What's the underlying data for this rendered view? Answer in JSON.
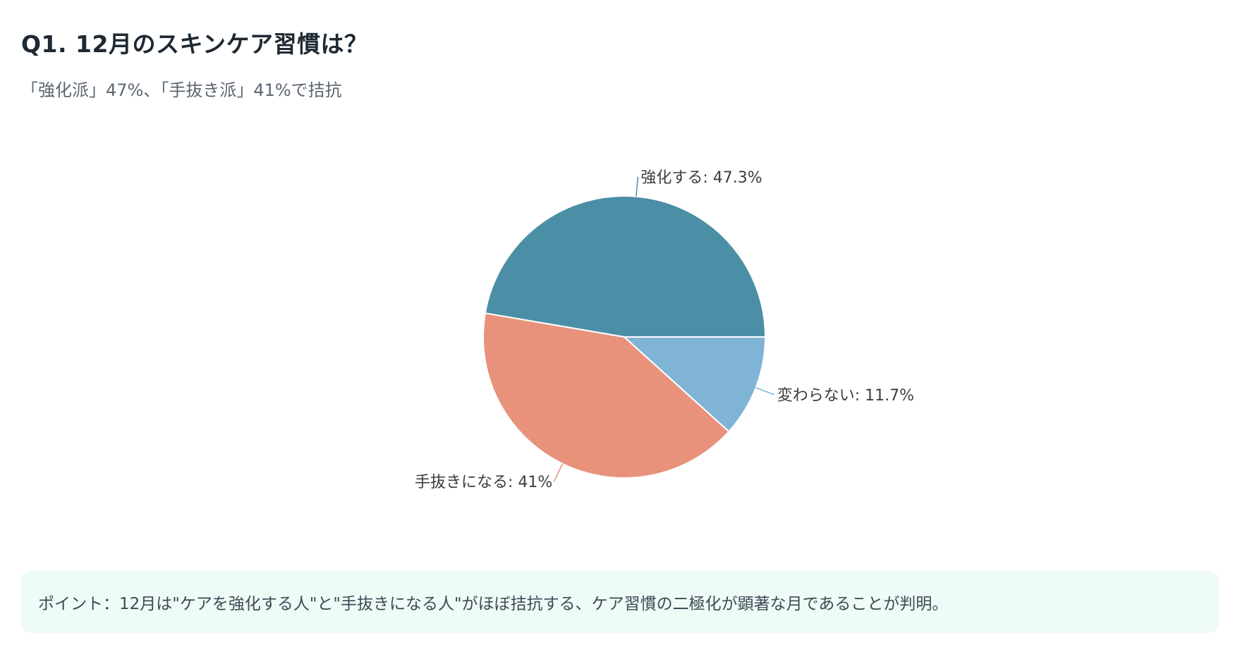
{
  "header": {
    "title": "Q1. 12月のスキンケア習慣は？",
    "subtitle": "「強化派」47%、「手抜き派」41%で拮抗"
  },
  "chart_data": {
    "type": "pie",
    "title": "",
    "start_angle_deg": 0,
    "direction": "counterclockwise",
    "slices": [
      {
        "label": "強化する",
        "value": 47.3,
        "display": "強化する: 47.3%",
        "color": "#4b8fa6"
      },
      {
        "label": "手抜きになる",
        "value": 41,
        "display": "手抜きになる: 41%",
        "color": "#e8917b"
      },
      {
        "label": "変わらない",
        "value": 11.7,
        "display": "変わらない: 11.7%",
        "color": "#7fb4d6"
      }
    ],
    "legend": "none"
  },
  "point": {
    "text": "ポイント：12月は\"ケアを強化する人\"と\"手抜きになる人\"がほぼ拮抗する、ケア習慣の二極化が顕著な月であることが判明。"
  }
}
